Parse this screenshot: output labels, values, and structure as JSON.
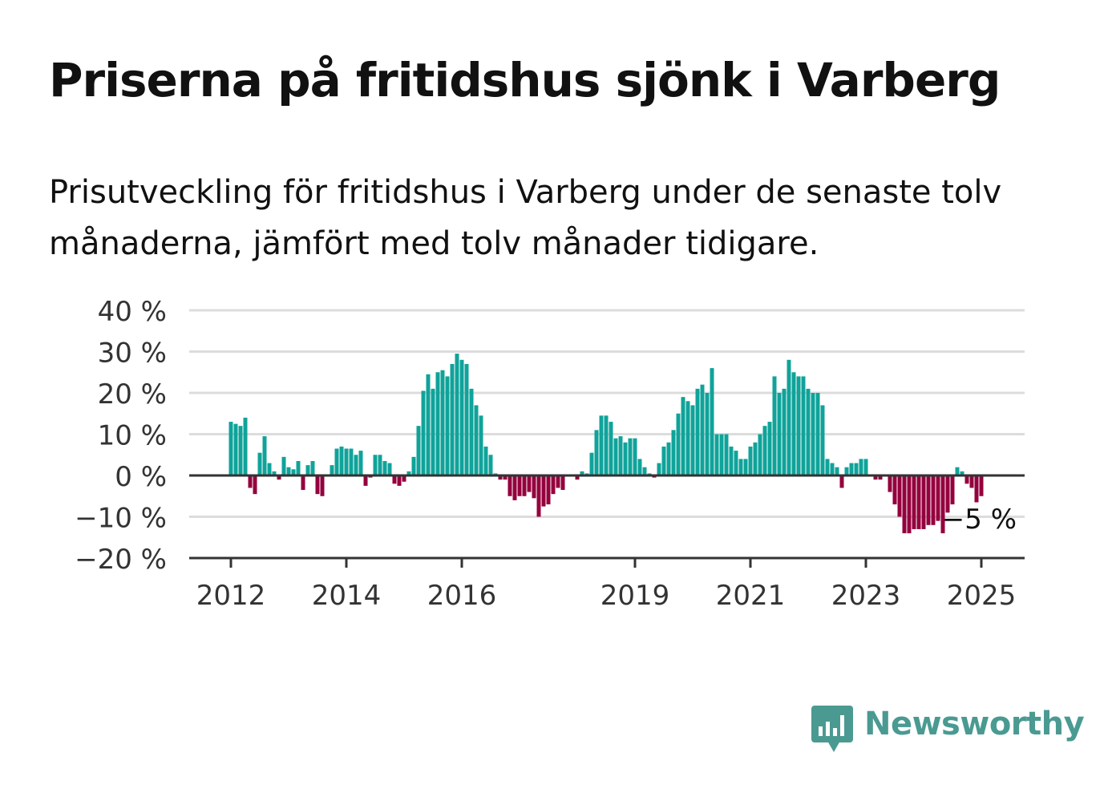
{
  "title": "Priserna på fritidshus sjönk i Varberg",
  "subtitle": "Prisutveckling för fritidshus i Varberg under de senaste tolv månaderna, jämfört med tolv månader tidigare.",
  "brand": {
    "name": "Newsworthy",
    "icon": "bar-chart-speech-bubble-icon",
    "color": "#4a9a92"
  },
  "chart_data": {
    "type": "bar",
    "x_start": "2012-01",
    "x_end": "2025-03",
    "ylim": [
      -20,
      40
    ],
    "y_ticks": [
      40,
      30,
      20,
      10,
      0,
      -10,
      -20
    ],
    "y_tick_labels": [
      "40 %",
      "30 %",
      "20 %",
      "10 %",
      "0 %",
      "−10 %",
      "−20 %"
    ],
    "x_ticks": [
      "2012",
      "2014",
      "2016",
      "2019",
      "2021",
      "2023",
      "2025"
    ],
    "positive_color": "#0fa39a",
    "negative_color": "#94003e",
    "end_label": "−5 %",
    "grid": true,
    "legend": "none",
    "unit": "%",
    "values": [
      13,
      12.5,
      12,
      14,
      -3,
      -4.5,
      5.5,
      9.5,
      3,
      1,
      -1,
      4.5,
      2,
      1.5,
      3.5,
      -3.5,
      2.5,
      3.5,
      -4.5,
      -5,
      0,
      2.5,
      6.5,
      7,
      6.5,
      6.5,
      5,
      6,
      -2.5,
      -0.5,
      5,
      5,
      3.5,
      3,
      -2,
      -2.5,
      -1.5,
      1,
      4.5,
      12,
      20.5,
      24.5,
      21,
      25,
      25.5,
      24,
      27,
      29.5,
      28,
      27,
      21,
      17,
      14.5,
      7,
      5,
      0.5,
      -1,
      -1,
      -5,
      -6,
      -5,
      -5,
      -4,
      -5.5,
      -10,
      -7.5,
      -7,
      -4.5,
      -3,
      -3.5,
      0,
      0,
      -1,
      1,
      0.5,
      5.5,
      11,
      14.5,
      14.5,
      13,
      9,
      9.5,
      8,
      9,
      9,
      4,
      2,
      0.5,
      -0.5,
      3,
      7,
      8,
      11,
      15,
      19,
      18,
      17,
      21,
      22,
      20,
      26,
      10,
      10,
      10,
      7,
      6,
      4,
      4,
      7,
      8,
      10,
      12,
      13,
      24,
      20,
      21,
      28,
      25,
      24,
      24,
      21,
      20,
      20,
      17,
      4,
      3,
      2,
      -3,
      2,
      3,
      3,
      4,
      4,
      0,
      -1,
      -1,
      0,
      -4,
      -7,
      -10,
      -14,
      -14,
      -13,
      -13,
      -13,
      -12,
      -12,
      -11,
      -14,
      -9,
      -7,
      2,
      1,
      -2,
      -3,
      -6.5,
      -5
    ]
  }
}
